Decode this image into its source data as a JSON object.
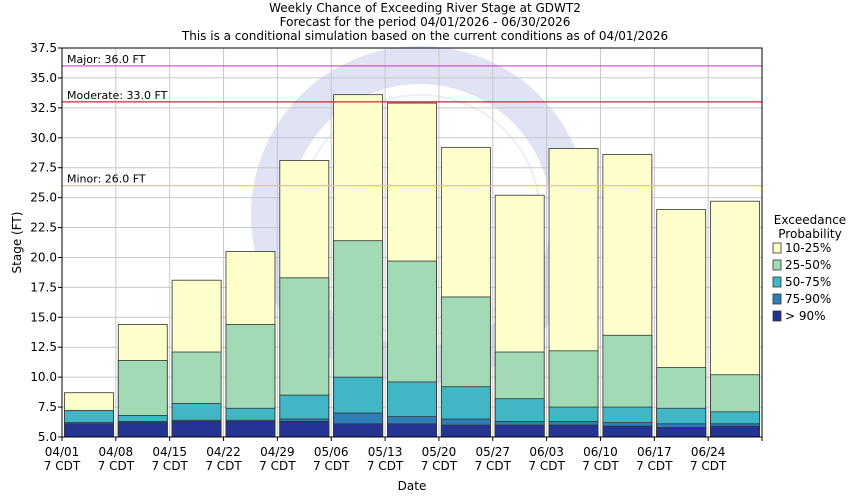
{
  "chart_data": {
    "type": "bar",
    "title": [
      "Weekly Chance of Exceeding River Stage at GDWT2",
      "Forecast for the period 04/01/2026 - 06/30/2026",
      "This is a conditional simulation based on the current conditions as of 04/01/2026"
    ],
    "xlabel": "Date",
    "ylabel": "Stage (FT)",
    "ylim": [
      5.0,
      37.5
    ],
    "yticks": [
      "5.0",
      "7.5",
      "10.0",
      "12.5",
      "15.0",
      "17.5",
      "20.0",
      "22.5",
      "25.0",
      "27.5",
      "30.0",
      "32.5",
      "35.0",
      "37.5"
    ],
    "categories": [
      [
        "04/01",
        "7 CDT"
      ],
      [
        "04/08",
        "7 CDT"
      ],
      [
        "04/15",
        "7 CDT"
      ],
      [
        "04/22",
        "7 CDT"
      ],
      [
        "04/29",
        "7 CDT"
      ],
      [
        "05/06",
        "7 CDT"
      ],
      [
        "05/13",
        "7 CDT"
      ],
      [
        "05/20",
        "7 CDT"
      ],
      [
        "05/27",
        "7 CDT"
      ],
      [
        "06/03",
        "7 CDT"
      ],
      [
        "06/10",
        "7 CDT"
      ],
      [
        "06/17",
        "7 CDT"
      ],
      [
        "06/24",
        "7 CDT"
      ]
    ],
    "series": [
      {
        "name": "> 90%",
        "color": "#253494",
        "values": [
          6.1,
          6.2,
          6.3,
          6.3,
          6.3,
          6.1,
          6.1,
          6.0,
          6.0,
          6.0,
          5.9,
          5.8,
          5.9
        ]
      },
      {
        "name": "75-90%",
        "color": "#2c7fb8",
        "values": [
          6.2,
          6.3,
          6.4,
          6.4,
          6.5,
          7.0,
          6.7,
          6.5,
          6.3,
          6.3,
          6.2,
          6.1,
          6.1
        ]
      },
      {
        "name": "50-75%",
        "color": "#41b6c4",
        "values": [
          7.2,
          6.8,
          7.8,
          7.4,
          8.5,
          10.0,
          9.6,
          9.2,
          8.2,
          7.5,
          7.5,
          7.4,
          7.1
        ]
      },
      {
        "name": "25-50%",
        "color": "#a1dab4",
        "values": [
          7.2,
          11.4,
          12.1,
          14.4,
          18.3,
          21.4,
          19.7,
          16.7,
          12.1,
          12.2,
          13.5,
          10.8,
          10.2
        ]
      },
      {
        "name": "10-25%",
        "color": "#ffffcc",
        "values": [
          8.7,
          14.4,
          18.1,
          20.5,
          28.1,
          33.6,
          32.9,
          29.2,
          25.2,
          29.1,
          28.6,
          24.0,
          24.7
        ]
      }
    ],
    "legend": {
      "title": [
        "Exceedance",
        "Probability"
      ],
      "entries": [
        "10-25%",
        "25-50%",
        "50-75%",
        "75-90%",
        "> 90%"
      ],
      "placement": "right"
    },
    "flood_levels": [
      {
        "label": "Major: 36.0 FT",
        "value": 36.0,
        "color": "#cc44cc"
      },
      {
        "label": "Moderate: 33.0 FT",
        "value": 33.0,
        "color": "#dd2233"
      },
      {
        "label": "Minor: 26.0 FT",
        "value": 26.0,
        "color": "#dddd22"
      }
    ],
    "grid": true
  }
}
